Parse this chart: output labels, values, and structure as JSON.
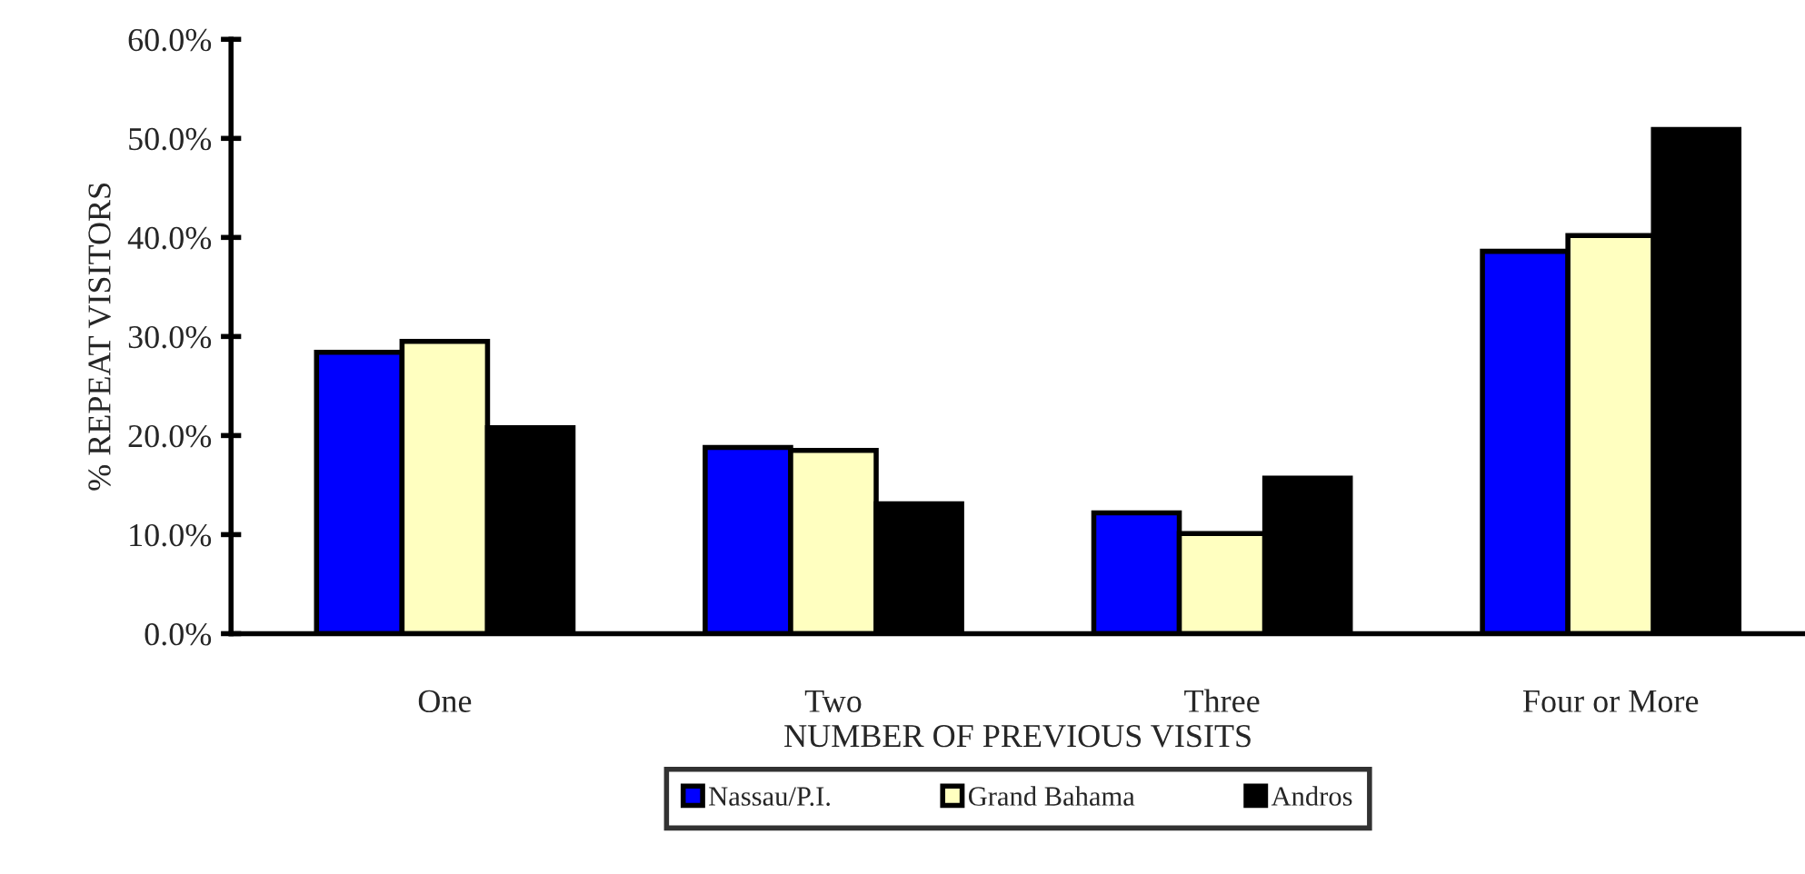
{
  "chart_data": {
    "type": "bar",
    "xlabel": "NUMBER OF PREVIOUS VISITS",
    "ylabel": "% REPEAT VISITORS",
    "categories": [
      "One",
      "Two",
      "Three",
      "Four or More"
    ],
    "series": [
      {
        "name": "Nassau/P.I.",
        "color": "#0000ff",
        "values": [
          28.4,
          18.8,
          12.2,
          38.6
        ]
      },
      {
        "name": "Grand Bahama",
        "color": "#ffffc0",
        "values": [
          29.5,
          18.5,
          10.1,
          40.2
        ]
      },
      {
        "name": "Andros",
        "color": "#000000",
        "values": [
          20.8,
          13.1,
          15.7,
          50.9
        ]
      }
    ],
    "ylim": [
      0,
      60
    ],
    "yticks": [
      {
        "value": 0,
        "label": "0.0%"
      },
      {
        "value": 10,
        "label": "10.0%"
      },
      {
        "value": 20,
        "label": "20.0%"
      },
      {
        "value": 30,
        "label": "30.0%"
      },
      {
        "value": 40,
        "label": "40.0%"
      },
      {
        "value": 50,
        "label": "50.0%"
      },
      {
        "value": 60,
        "label": "60.0%"
      }
    ],
    "grid": false,
    "legend": "bottom"
  }
}
